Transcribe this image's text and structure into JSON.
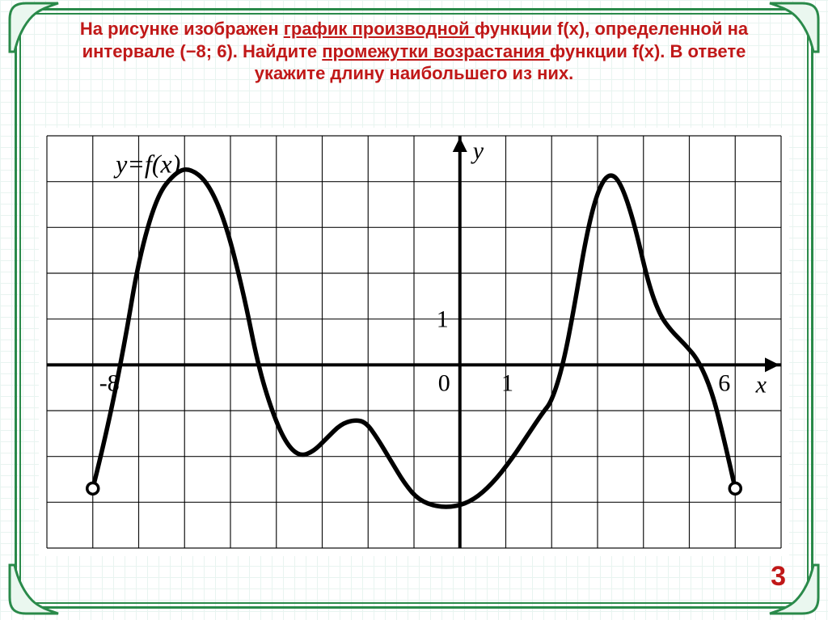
{
  "title": {
    "parts": [
      {
        "t": "На рисунке изображен ",
        "u": false
      },
      {
        "t": "график производной ",
        "u": true
      },
      {
        "t": "функции f(x), определенной на интервале (−8; 6). Найдите ",
        "u": false
      },
      {
        "t": "промежутки возрастания ",
        "u": true
      },
      {
        "t": "функции f(x). В ответе укажите длину наибольшего из них.",
        "u": false
      }
    ],
    "color": "#c01818",
    "fontsize": 22
  },
  "answer": {
    "value": "3",
    "color": "#c01818",
    "fontsize": 34
  },
  "chart": {
    "type": "line",
    "xlim": [
      -9,
      7
    ],
    "ylim": [
      -4,
      5
    ],
    "xtick_step": 1,
    "ytick_step": 1,
    "grid_color": "#000000",
    "grid_width": 1.2,
    "background_color": "#ffffff",
    "axis_color": "#000000",
    "axis_width": 4,
    "curve_color": "#000000",
    "curve_width": 5.5,
    "label_y": "y",
    "label_x": "x",
    "label_fn": "y=f(x)",
    "label_fn_pos": [
      -7.5,
      4.2
    ],
    "tick_labels": {
      "x": [
        {
          "v": -8,
          "label": "-8"
        },
        {
          "v": 0,
          "label": "0"
        },
        {
          "v": 1,
          "label": "1"
        },
        {
          "v": 6,
          "label": "6"
        }
      ],
      "y": [
        {
          "v": 1,
          "label": "1"
        }
      ]
    },
    "label_fontsize": 30,
    "open_points": [
      {
        "x": -8,
        "y": -2.7
      },
      {
        "x": 6,
        "y": -2.7
      }
    ],
    "curve_points": [
      [
        -8,
        -2.7
      ],
      [
        -7.7,
        -1.5
      ],
      [
        -7.3,
        0.5
      ],
      [
        -7,
        2.3
      ],
      [
        -6.6,
        3.7
      ],
      [
        -6.2,
        4.2
      ],
      [
        -5.9,
        4.3
      ],
      [
        -5.5,
        4.0
      ],
      [
        -5.1,
        3.1
      ],
      [
        -4.7,
        1.5
      ],
      [
        -4.4,
        0.0
      ],
      [
        -4.1,
        -1.0
      ],
      [
        -3.8,
        -1.7
      ],
      [
        -3.5,
        -2.0
      ],
      [
        -3.2,
        -1.9
      ],
      [
        -2.9,
        -1.6
      ],
      [
        -2.6,
        -1.3
      ],
      [
        -2.3,
        -1.2
      ],
      [
        -2.05,
        -1.25
      ],
      [
        -1.8,
        -1.6
      ],
      [
        -1.5,
        -2.1
      ],
      [
        -1.2,
        -2.6
      ],
      [
        -0.9,
        -2.95
      ],
      [
        -0.5,
        -3.1
      ],
      [
        -0.1,
        -3.1
      ],
      [
        0.3,
        -2.95
      ],
      [
        0.7,
        -2.6
      ],
      [
        1.1,
        -2.1
      ],
      [
        1.5,
        -1.5
      ],
      [
        1.8,
        -1.05
      ],
      [
        2.0,
        -0.8
      ],
      [
        2.25,
        0.0
      ],
      [
        2.5,
        1.3
      ],
      [
        2.75,
        2.8
      ],
      [
        3.0,
        3.8
      ],
      [
        3.25,
        4.2
      ],
      [
        3.5,
        4.0
      ],
      [
        3.8,
        3.1
      ],
      [
        4.1,
        1.8
      ],
      [
        4.35,
        1.1
      ],
      [
        4.6,
        0.75
      ],
      [
        4.9,
        0.45
      ],
      [
        5.2,
        0.1
      ],
      [
        5.5,
        -0.6
      ],
      [
        5.75,
        -1.6
      ],
      [
        6.0,
        -2.7
      ]
    ]
  },
  "frame": {
    "border_color": "#2a8a4a",
    "corner_fill": "#eaf7ef"
  }
}
